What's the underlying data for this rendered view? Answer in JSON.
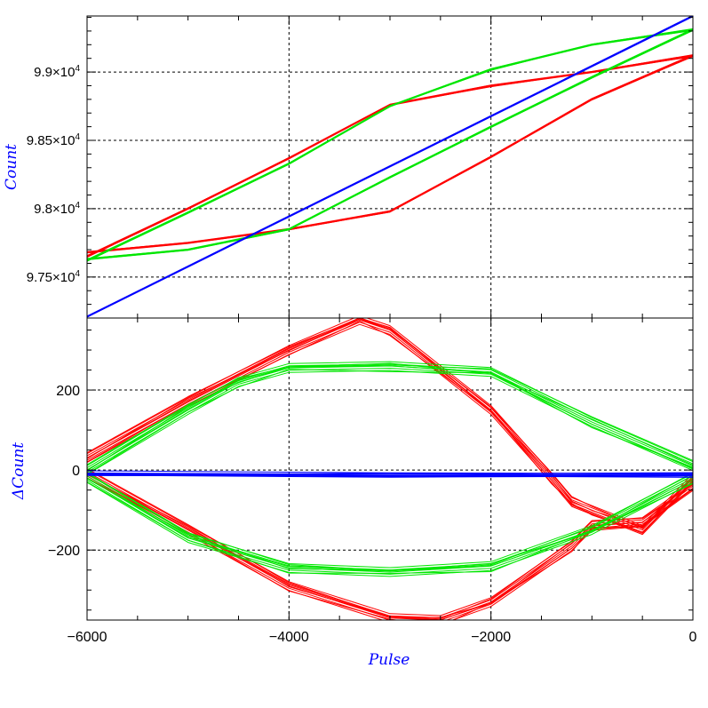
{
  "colors": {
    "red": "#ff0000",
    "green": "#00e600",
    "blue": "#0000ff",
    "axis_title": "#0000ff",
    "grid": "#000000"
  },
  "chart_data": [
    {
      "type": "line",
      "panel": "top",
      "ylabel": "Count",
      "xlim": [
        -6000,
        0
      ],
      "ylim": [
        97200,
        99410
      ],
      "yticks": [
        {
          "value": 97500,
          "mantissa": "9.75",
          "base": "×10",
          "exp": "4"
        },
        {
          "value": 98000,
          "mantissa": "9.8",
          "base": "×10",
          "exp": "4"
        },
        {
          "value": 98500,
          "mantissa": "9.85",
          "base": "×10",
          "exp": "4"
        },
        {
          "value": 99000,
          "mantissa": "9.9",
          "base": "×10",
          "exp": "4"
        }
      ],
      "grid": true,
      "series": [
        {
          "color": "red",
          "x": [
            -6000,
            -5000,
            -4000,
            -3000,
            -2000,
            -1000,
            0,
            -1000,
            -2000,
            -3000,
            -4000,
            -5000,
            -6000
          ],
          "y": [
            97650,
            98000,
            98370,
            98760,
            98900,
            99000,
            99120,
            98800,
            98380,
            97980,
            97850,
            97750,
            97680
          ]
        },
        {
          "color": "green",
          "x": [
            -6000,
            -5000,
            -4000,
            -3000,
            -2000,
            -1000,
            0,
            -1000,
            -2000,
            -3000,
            -4000,
            -5000,
            -6000
          ],
          "y": [
            97620,
            97970,
            98330,
            98750,
            99020,
            99200,
            99310,
            98960,
            98600,
            98230,
            97850,
            97700,
            97630
          ]
        },
        {
          "color": "blue",
          "x": [
            -6000,
            0
          ],
          "y": [
            97210,
            99410
          ]
        }
      ]
    },
    {
      "type": "line",
      "panel": "bottom",
      "ylabel": "ΔCount",
      "xlabel": "Pulse",
      "xlim": [
        -6000,
        0
      ],
      "ylim": [
        -375,
        380
      ],
      "yticks": [
        -200,
        0,
        200
      ],
      "xticks": [
        -6000,
        -4000,
        -2000,
        0
      ],
      "grid": true,
      "series": [
        {
          "color": "red",
          "x": [
            -6000,
            -5000,
            -4000,
            -3300,
            -3000,
            -2000,
            -1400,
            -1200,
            -1000,
            -500,
            0
          ],
          "y": [
            30,
            170,
            300,
            375,
            350,
            150,
            -20,
            -80,
            -100,
            -150,
            -20
          ]
        },
        {
          "color": "red",
          "x": [
            -6000,
            -5000,
            -4000,
            -3000,
            -2500,
            -2000,
            -1200,
            -1000,
            -500,
            0
          ],
          "y": [
            -10,
            -150,
            -290,
            -370,
            -375,
            -330,
            -190,
            -140,
            -130,
            -40
          ]
        },
        {
          "color": "green",
          "x": [
            -6000,
            -5000,
            -4500,
            -4000,
            -3000,
            -2000,
            -1000,
            0
          ],
          "y": [
            0,
            150,
            220,
            255,
            260,
            245,
            120,
            10
          ]
        },
        {
          "color": "green",
          "x": [
            -6000,
            -5000,
            -4000,
            -3000,
            -2000,
            -1000,
            0
          ],
          "y": [
            -20,
            -170,
            -245,
            -255,
            -240,
            -150,
            -20
          ]
        },
        {
          "color": "blue",
          "x": [
            -6000,
            -3000,
            0
          ],
          "y": [
            -10,
            -15,
            -12
          ]
        }
      ]
    }
  ]
}
